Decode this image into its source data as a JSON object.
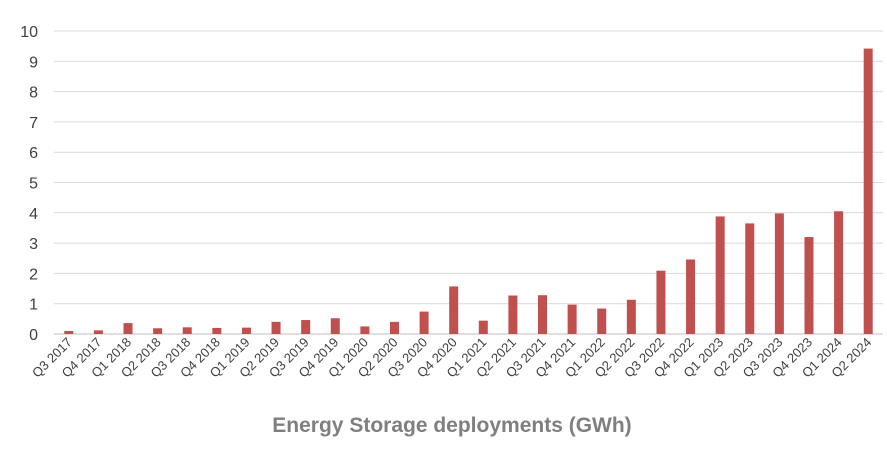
{
  "chart_data": {
    "type": "bar",
    "title": "",
    "xlabel": "Energy Storage deployments (GWh)",
    "ylabel": "",
    "ylim": [
      0,
      10
    ],
    "yticks": [
      0,
      1,
      2,
      3,
      4,
      5,
      6,
      7,
      8,
      9,
      10
    ],
    "grid": true,
    "legend": "none",
    "bar_color": "#c0504d",
    "categories": [
      "Q3 2017",
      "Q4 2017",
      "Q1 2018",
      "Q2 2018",
      "Q3 2018",
      "Q4 2018",
      "Q1 2019",
      "Q2 2019",
      "Q3 2019",
      "Q4 2019",
      "Q1 2020",
      "Q2 2020",
      "Q3 2020",
      "Q4 2020",
      "Q1 2021",
      "Q2 2021",
      "Q3 2021",
      "Q4 2021",
      "Q1 2022",
      "Q2 2022",
      "Q3 2022",
      "Q4 2022",
      "Q1 2023",
      "Q2 2023",
      "Q3 2023",
      "Q4 2023",
      "Q1 2024",
      "Q2 2024"
    ],
    "values": [
      0.1,
      0.12,
      0.36,
      0.19,
      0.22,
      0.2,
      0.21,
      0.4,
      0.46,
      0.52,
      0.25,
      0.4,
      0.74,
      1.57,
      0.44,
      1.27,
      1.28,
      0.97,
      0.84,
      1.13,
      2.09,
      2.46,
      3.88,
      3.65,
      3.98,
      3.2,
      4.05,
      9.42
    ]
  }
}
